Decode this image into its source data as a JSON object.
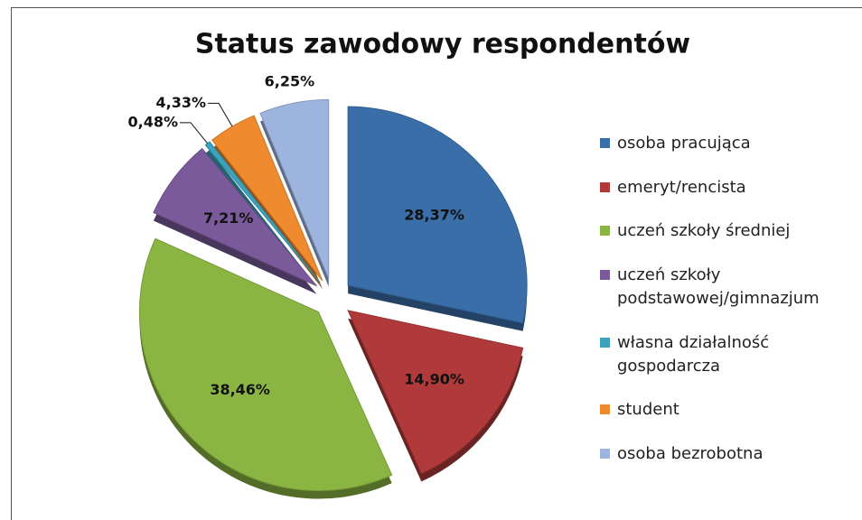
{
  "chart_data": {
    "type": "pie",
    "title": "Status zawodowy respondentów",
    "categories": [
      "osoba pracująca",
      "emeryt/rencista",
      "uczeń szkoły średniej",
      "uczeń szkoły podstawowej/gimnazjum",
      "własna działalność gospodarcza",
      "student",
      "osoba bezrobotna"
    ],
    "values": [
      28.37,
      14.9,
      38.46,
      7.21,
      0.48,
      4.33,
      6.25
    ],
    "value_labels": [
      "28,37%",
      "14,90%",
      "38,46%",
      "7,21%",
      "0,48%",
      "4,33%",
      "6,25%"
    ],
    "colors": [
      "#3a6ea8",
      "#b03a3a",
      "#8bb543",
      "#7a5a9a",
      "#3ba3bd",
      "#ef8a2e",
      "#9db4de"
    ],
    "legend": "right"
  }
}
